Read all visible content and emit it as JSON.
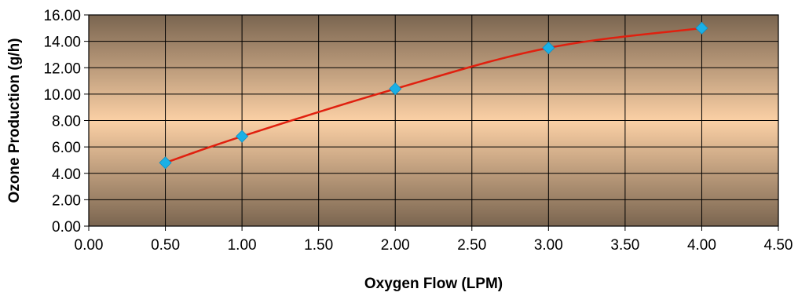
{
  "chart_data": {
    "type": "line",
    "title": "",
    "xlabel": "Oxygen Flow (LPM)",
    "ylabel": "Ozone Production (g/h)",
    "xlim": [
      0,
      4.5
    ],
    "ylim": [
      0,
      16
    ],
    "x_ticks": [
      "0.00",
      "0.50",
      "1.00",
      "1.50",
      "2.00",
      "2.50",
      "3.00",
      "3.50",
      "4.00",
      "4.50"
    ],
    "y_ticks": [
      "0.00",
      "2.00",
      "4.00",
      "6.00",
      "8.00",
      "10.00",
      "12.00",
      "14.00",
      "16.00"
    ],
    "grid": true,
    "legend": "none",
    "series": [
      {
        "x": [
          0.5,
          1.0,
          2.0,
          3.0,
          4.0
        ],
        "y": [
          4.8,
          6.8,
          10.4,
          13.5,
          15.0
        ],
        "line_color": "#e0200f",
        "marker_color": "#1ab0e6",
        "marker": "diamond"
      }
    ],
    "background_gradient": [
      "#7a6550",
      "#fbd0a5",
      "#7a6550"
    ]
  }
}
